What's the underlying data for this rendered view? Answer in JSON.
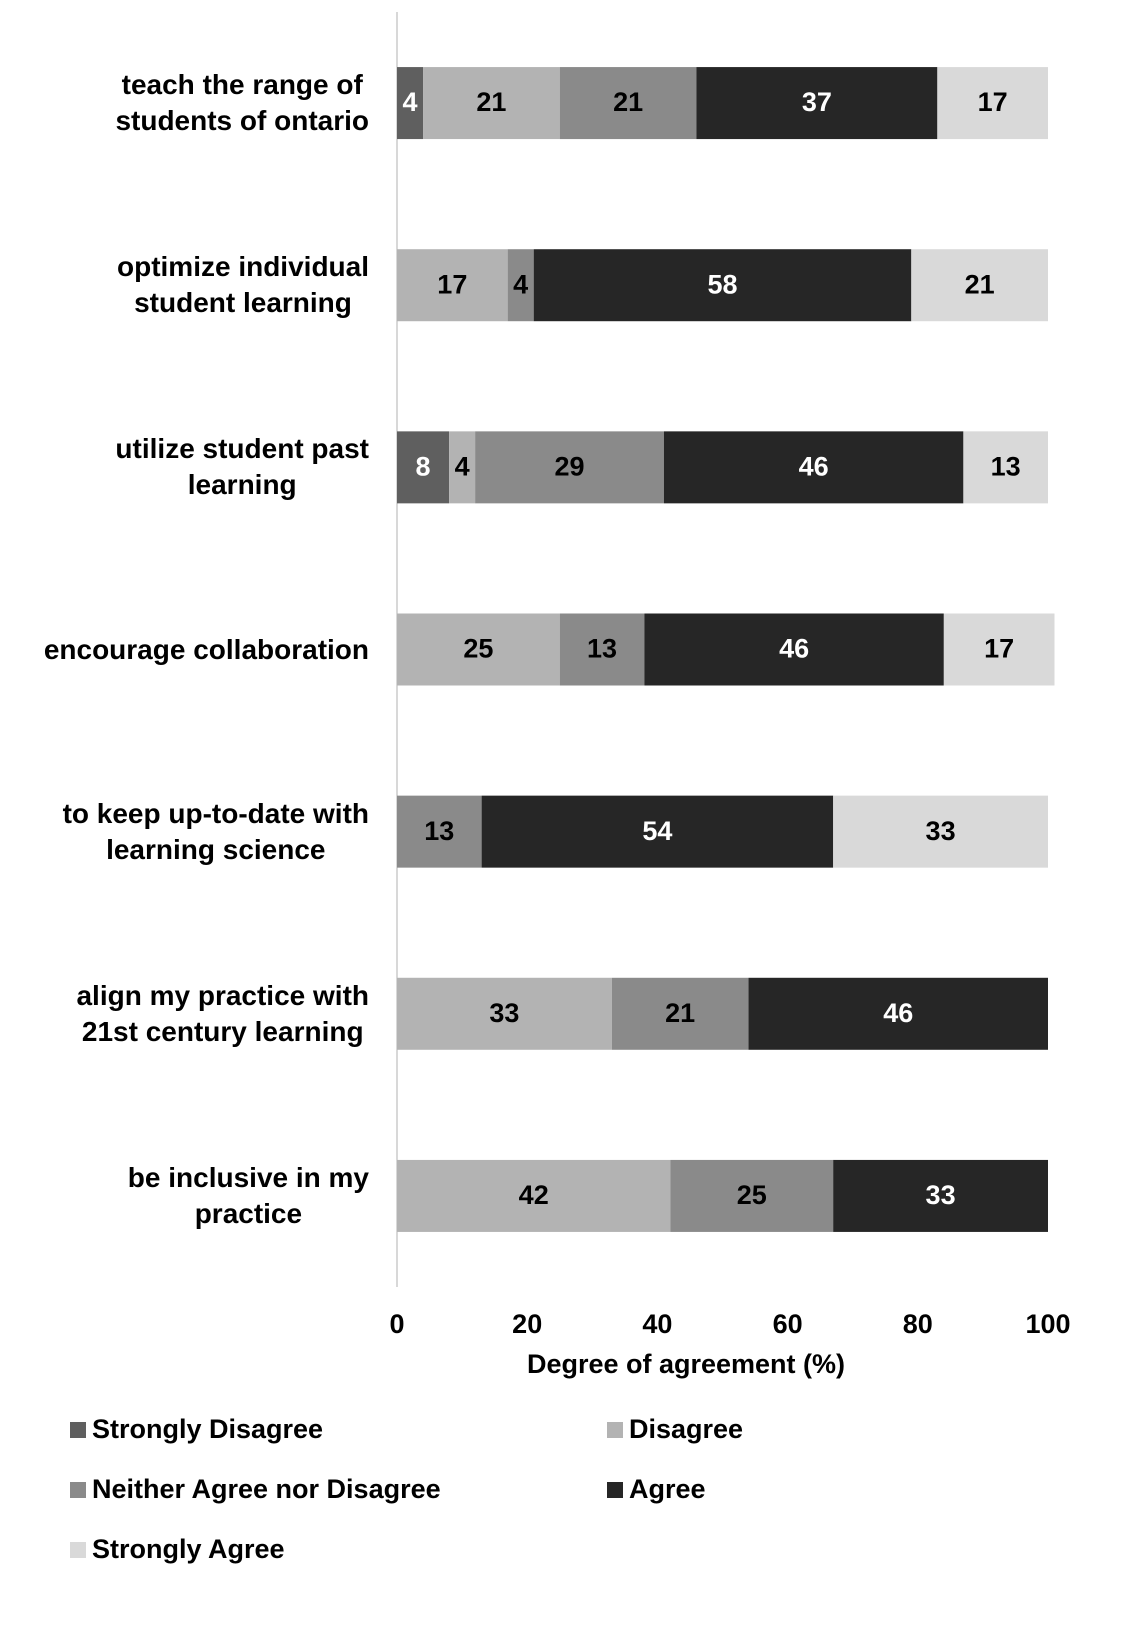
{
  "chart_data": {
    "type": "stacked-barh",
    "categories": [
      "teach the range of\nstudents of ontario",
      "optimize individual\nstudent learning",
      "utilize student past\nlearning",
      "encourage collaboration",
      "to keep up-to-date with\nlearning science",
      "align my practice with\n21st century learning",
      "be inclusive in my\npractice"
    ],
    "series": [
      {
        "name": "Strongly Disagree",
        "color": "#5f5f5f",
        "label_color": "#ffffff",
        "values": [
          4,
          null,
          8,
          null,
          null,
          null,
          null
        ]
      },
      {
        "name": "Disagree",
        "color": "#b3b3b3",
        "label_color": "#000000",
        "values": [
          21,
          17,
          4,
          25,
          null,
          33,
          42
        ]
      },
      {
        "name": "Neither Agree nor Disagree",
        "color": "#8a8a8a",
        "label_color": "#000000",
        "values": [
          21,
          4,
          29,
          13,
          13,
          21,
          25
        ]
      },
      {
        "name": "Agree",
        "color": "#262626",
        "label_color": "#ffffff",
        "values": [
          37,
          58,
          46,
          46,
          54,
          46,
          33
        ]
      },
      {
        "name": "Strongly Agree",
        "color": "#d9d9d9",
        "label_color": "#000000",
        "values": [
          17,
          21,
          13,
          17,
          33,
          null,
          null
        ]
      }
    ],
    "x_label": "Degree of agreement (%)",
    "xlim": [
      0,
      100
    ],
    "xticks": [
      0,
      20,
      40,
      60,
      80,
      100
    ],
    "legend": "bottom"
  }
}
